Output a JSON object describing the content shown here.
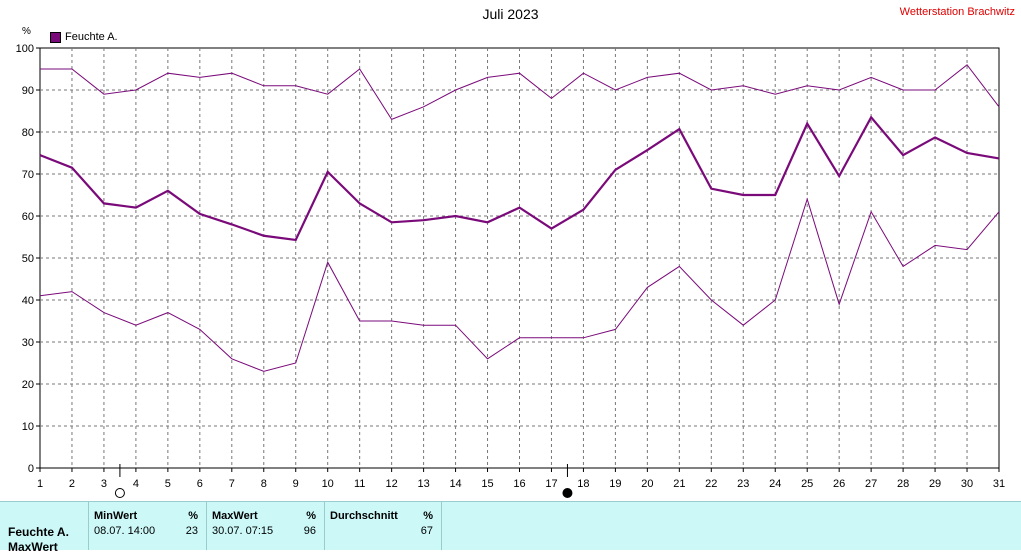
{
  "header": {
    "title": "Juli 2023",
    "station": "Wetterstation Brachwitz",
    "unit": "%",
    "legend_label": "Feuchte A."
  },
  "chart_data": {
    "type": "line",
    "title": "Juli 2023",
    "ylabel": "%",
    "xlabel": "",
    "ylim": [
      0,
      100
    ],
    "xlim": [
      1,
      31
    ],
    "grid": true,
    "legend": "top-left",
    "yticks": [
      0,
      10,
      20,
      30,
      40,
      50,
      60,
      70,
      80,
      90,
      100
    ],
    "x": [
      1,
      2,
      3,
      4,
      5,
      6,
      7,
      8,
      9,
      10,
      11,
      12,
      13,
      14,
      15,
      16,
      17,
      18,
      19,
      20,
      21,
      22,
      23,
      24,
      25,
      26,
      27,
      28,
      29,
      30,
      31
    ],
    "series": [
      {
        "name": "Feuchte A.",
        "role": "mean",
        "color": "#7a0a7a",
        "values": [
          74.5,
          71.5,
          63,
          62,
          66,
          60.5,
          58,
          55.3,
          54.3,
          70.5,
          63,
          58.5,
          59,
          60,
          58.5,
          62,
          57,
          61.5,
          71,
          75.7,
          80.7,
          66.5,
          65,
          65,
          82,
          69.5,
          83.5,
          74.5,
          78.7,
          75,
          73.7
        ]
      },
      {
        "role": "max",
        "color": "#7a0a7a",
        "values": [
          95,
          95,
          89,
          90,
          94,
          93,
          94,
          91,
          91,
          89,
          95,
          83,
          86,
          90,
          93,
          94,
          88,
          94,
          90,
          93,
          94,
          90,
          91,
          89,
          91,
          90,
          93,
          90,
          90,
          96,
          86
        ]
      },
      {
        "role": "min",
        "color": "#7a0a7a",
        "values": [
          41,
          42,
          37,
          34,
          37,
          33,
          26,
          23,
          25,
          49,
          35,
          35,
          34,
          34,
          26,
          31,
          31,
          31,
          33,
          43,
          48,
          40,
          34,
          40,
          64,
          39,
          61,
          48,
          53,
          52,
          61
        ]
      }
    ],
    "moon_markers": [
      {
        "day": 3.5,
        "phase": "full-moon"
      },
      {
        "day": 17.5,
        "phase": "new-moon"
      }
    ]
  },
  "stats": {
    "row_label": "Feuchte A.",
    "row_label_2": "MaxWert",
    "min": {
      "header": "MinWert",
      "unit": "%",
      "time": "08.07.  14:00",
      "value": "23"
    },
    "max": {
      "header": "MaxWert",
      "unit": "%",
      "time": "30.07.  07:15",
      "value": "96"
    },
    "avg": {
      "header": "Durchschnitt",
      "unit": "%",
      "value": "67"
    }
  }
}
